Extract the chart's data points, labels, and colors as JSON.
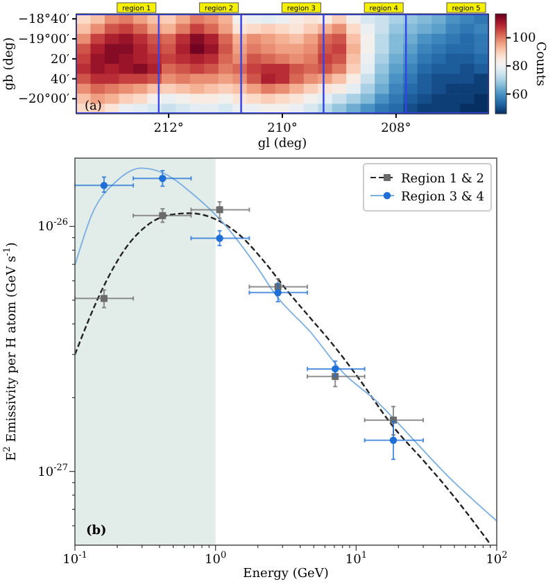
{
  "chart_data": [
    {
      "type": "heatmap",
      "xlabel": "gl (deg)",
      "ylabel": "gb (deg)",
      "clabel": "Counts",
      "annotations": [
        "(a)",
        "region 1",
        "region 2",
        "region 3",
        "region 4",
        "region 5"
      ],
      "clim": [
        46,
        117
      ],
      "cticks": [
        60,
        80,
        100
      ],
      "categories": [
        null,
        null,
        null,
        null,
        null,
        null,
        "212°",
        null,
        null,
        null,
        null,
        null,
        null,
        null,
        "210°",
        null,
        null,
        null,
        null,
        null,
        null,
        null,
        "208°",
        null,
        null,
        null,
        null,
        null,
        null
      ],
      "y_categories": [
        "−18°40′",
        null,
        "−19°00′",
        null,
        "20′",
        null,
        "40′",
        null,
        "−20°00′",
        null
      ],
      "cells": [
        [
          88,
          92,
          98,
          100,
          96,
          92,
          90,
          95,
          100,
          98,
          94,
          82,
          80,
          78,
          80,
          84,
          86,
          84,
          90,
          82,
          76,
          74,
          70,
          68,
          66,
          64,
          60,
          58,
          56
        ],
        [
          92,
          98,
          104,
          106,
          102,
          96,
          94,
          100,
          106,
          102,
          96,
          86,
          88,
          90,
          88,
          86,
          90,
          94,
          98,
          88,
          80,
          74,
          68,
          66,
          64,
          62,
          58,
          56,
          58
        ],
        [
          98,
          106,
          110,
          112,
          108,
          104,
          102,
          108,
          114,
          110,
          102,
          94,
          98,
          96,
          94,
          92,
          96,
          102,
          104,
          92,
          82,
          72,
          66,
          64,
          60,
          58,
          56,
          54,
          56
        ],
        [
          104,
          110,
          114,
          114,
          110,
          106,
          104,
          110,
          116,
          112,
          104,
          96,
          100,
          98,
          96,
          96,
          98,
          104,
          106,
          94,
          82,
          72,
          66,
          62,
          58,
          56,
          54,
          54,
          56
        ],
        [
          106,
          112,
          114,
          112,
          110,
          108,
          106,
          108,
          110,
          108,
          102,
          98,
          104,
          102,
          100,
          98,
          100,
          106,
          104,
          92,
          80,
          70,
          64,
          60,
          56,
          54,
          52,
          52,
          54
        ],
        [
          108,
          112,
          110,
          112,
          114,
          110,
          102,
          104,
          106,
          104,
          100,
          102,
          106,
          108,
          108,
          104,
          102,
          104,
          100,
          90,
          78,
          68,
          62,
          58,
          54,
          52,
          52,
          50,
          52
        ],
        [
          104,
          108,
          108,
          106,
          106,
          104,
          98,
          100,
          98,
          98,
          96,
          98,
          104,
          110,
          108,
          102,
          98,
          96,
          92,
          84,
          74,
          66,
          60,
          56,
          52,
          50,
          50,
          50,
          48
        ],
        [
          98,
          102,
          100,
          98,
          96,
          92,
          90,
          92,
          94,
          92,
          90,
          92,
          96,
          100,
          98,
          94,
          90,
          86,
          84,
          78,
          70,
          64,
          58,
          54,
          52,
          50,
          48,
          48,
          48
        ],
        [
          92,
          96,
          94,
          90,
          88,
          82,
          80,
          82,
          84,
          84,
          82,
          86,
          88,
          90,
          88,
          86,
          82,
          78,
          74,
          70,
          66,
          60,
          56,
          52,
          50,
          48,
          48,
          48,
          46
        ],
        [
          88,
          90,
          86,
          80,
          78,
          76,
          74,
          76,
          78,
          78,
          76,
          80,
          80,
          82,
          82,
          80,
          76,
          72,
          68,
          64,
          60,
          56,
          54,
          50,
          48,
          48,
          48,
          46,
          46
        ]
      ]
    },
    {
      "type": "scatter",
      "xlabel": "Energy (GeV)",
      "ylabel": "E$^{2}$ Emissivity per H atom (GeV s$^{-1}$)",
      "annotations": [
        "(b)"
      ],
      "log": "xy",
      "legend": "top right",
      "xlim": [
        0.1,
        100
      ],
      "xticks": [
        {
          "value": 0.1,
          "label": "10$^{-1}$"
        },
        {
          "value": 0.2,
          "label": null
        },
        {
          "value": 0.3,
          "label": null
        },
        {
          "value": 0.4,
          "label": null
        },
        {
          "value": 0.5,
          "label": null
        },
        {
          "value": 0.6,
          "label": null
        },
        {
          "value": 0.7,
          "label": null
        },
        {
          "value": 0.8,
          "label": null
        },
        {
          "value": 0.9,
          "label": null
        },
        {
          "value": 1,
          "label": "10$^{0}$"
        },
        {
          "value": 2,
          "label": null
        },
        {
          "value": 3,
          "label": null
        },
        {
          "value": 4,
          "label": null
        },
        {
          "value": 5,
          "label": null
        },
        {
          "value": 6,
          "label": null
        },
        {
          "value": 7,
          "label": null
        },
        {
          "value": 8,
          "label": null
        },
        {
          "value": 9,
          "label": null
        },
        {
          "value": 10,
          "label": "10$^{1}$"
        },
        {
          "value": 20,
          "label": null
        },
        {
          "value": 30,
          "label": null
        },
        {
          "value": 40,
          "label": null
        },
        {
          "value": 50,
          "label": null
        },
        {
          "value": 60,
          "label": null
        },
        {
          "value": 70,
          "label": null
        },
        {
          "value": 80,
          "label": null
        },
        {
          "value": 90,
          "label": null
        },
        {
          "value": 100,
          "label": "10$^{2}$"
        }
      ],
      "ylim": [
        5e-28,
        1.9e-26
      ],
      "yticks": [
        {
          "value": 6e-28,
          "label": null
        },
        {
          "value": 7e-28,
          "label": null
        },
        {
          "value": 8e-28,
          "label": null
        },
        {
          "value": 9e-28,
          "label": null
        },
        {
          "value": 1e-27,
          "label": "10$^{-27}$"
        },
        {
          "value": 2e-27,
          "label": null
        },
        {
          "value": 3e-27,
          "label": null
        },
        {
          "value": 4e-27,
          "label": null
        },
        {
          "value": 5e-27,
          "label": null
        },
        {
          "value": 6e-27,
          "label": null
        },
        {
          "value": 7e-27,
          "label": null
        },
        {
          "value": 8e-27,
          "label": null
        },
        {
          "value": 9e-27,
          "label": null
        },
        {
          "value": 1e-26,
          "label": "10$^{-26}$"
        }
      ],
      "bands": [
        {
          "axis": "x",
          "from": 0.1,
          "to": 1,
          "color": "#e2ede9"
        }
      ],
      "series": [
        {
          "name": "Region 1 & 2",
          "type": "scatter",
          "marker": "square",
          "color": "#6b6b6b",
          "x": [
            0.161,
            0.42,
            1.07,
            2.78,
            7.1,
            18.4
          ],
          "values": [
            5.08e-27,
            1.107e-26,
            1.17e-26,
            5.67e-27,
            2.44e-27,
            1.62e-27
          ],
          "errors": [
            [
              4.66e-27,
              5.5e-27
            ],
            [
              1.04e-26,
              1.18e-26
            ],
            [
              1.08e-26,
              1.26e-26
            ],
            [
              5.23e-27,
              6.1e-27
            ],
            [
              2.22e-27,
              2.64e-27
            ],
            [
              1.41e-27,
              1.84e-27
            ]
          ],
          "xerrors": [
            [
              0.1,
              0.26
            ],
            [
              0.26,
              0.67
            ],
            [
              0.67,
              1.74
            ],
            [
              1.74,
              4.5
            ],
            [
              4.5,
              11.5
            ],
            [
              11.5,
              30
            ]
          ]
        },
        {
          "type": "line",
          "line_style": "dashed",
          "color": "#222222",
          "x": [
            0.1,
            0.155,
            0.226,
            0.331,
            0.483,
            0.655,
            1.03,
            1.51,
            2.2,
            3.22,
            4.69,
            6.85,
            10,
            18.4,
            31.3,
            45.5,
            90.2
          ],
          "values": [
            3e-27,
            5.48e-27,
            8.05e-27,
            1.016e-26,
            1.117e-26,
            1.132e-26,
            1.062e-26,
            9.14e-27,
            7.23e-27,
            5.48e-27,
            4.25e-27,
            3.29e-27,
            2.48e-27,
            1.52e-27,
            1.08e-27,
            8.4e-28,
            5.04e-28
          ]
        },
        {
          "name": "Region 3 & 4",
          "type": "scatter",
          "marker": "circle",
          "color": "#1f6fd6",
          "x": [
            0.161,
            0.42,
            1.07,
            2.78,
            7.1,
            18.4
          ],
          "values": [
            1.47e-26,
            1.57e-26,
            8.95e-27,
            5.37e-27,
            2.62e-27,
            1.34e-27
          ],
          "errors": [
            [
              1.38e-26,
              1.59e-26
            ],
            [
              1.46e-26,
              1.69e-26
            ],
            [
              8.35e-27,
              9.6e-27
            ],
            [
              4.93e-27,
              5.85e-27
            ],
            [
              2.45e-27,
              2.82e-27
            ],
            [
              1.12e-27,
              1.6e-27
            ]
          ],
          "xerrors": [
            [
              0.1,
              0.26
            ],
            [
              0.26,
              0.67
            ],
            [
              0.67,
              1.74
            ],
            [
              1.74,
              4.5
            ],
            [
              4.5,
              11.5
            ],
            [
              11.5,
              30
            ]
          ]
        },
        {
          "type": "line",
          "line_style": "solid",
          "color": "#7aaee0",
          "x": [
            0.1,
            0.133,
            0.195,
            0.296,
            0.416,
            0.706,
            1.2,
            1.89,
            2.76,
            4.69,
            7.98,
            14.6,
            17,
            45.5,
            100
          ],
          "values": [
            6.93e-27,
            1.13e-26,
            1.52e-26,
            1.73e-26,
            1.66e-26,
            1.34e-26,
            9.96e-27,
            7.08e-27,
            5.14e-27,
            3.73e-27,
            2.55e-27,
            1.89e-27,
            1.73e-27,
            9.5e-28,
            6.28e-28
          ]
        }
      ]
    }
  ]
}
